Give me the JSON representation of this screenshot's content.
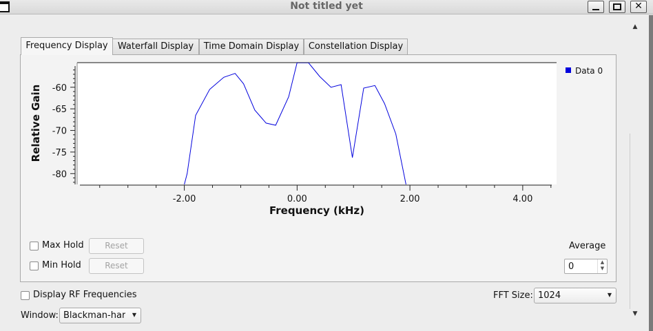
{
  "window": {
    "title": "Not titled yet"
  },
  "tabs": [
    {
      "label": "Frequency Display",
      "active": true
    },
    {
      "label": "Waterfall Display",
      "active": false
    },
    {
      "label": "Time Domain Display",
      "active": false
    },
    {
      "label": "Constellation Display",
      "active": false
    }
  ],
  "chart_data": {
    "type": "line",
    "xlabel": "Frequency (kHz)",
    "ylabel": "Relative Gain",
    "xlim": [
      -3.9,
      4.6
    ],
    "ylim": [
      -82.5,
      -54.3
    ],
    "x_ticks": [
      "-2.00",
      "0.00",
      "2.00",
      "4.00"
    ],
    "y_ticks": [
      "-60",
      "-65",
      "-70",
      "-75",
      "-80"
    ],
    "legend_position": "top-right",
    "grid": false,
    "series": [
      {
        "name": "Data 0",
        "color": "#0000dd",
        "x": [
          -2.0,
          -1.95,
          -1.8,
          -1.55,
          -1.3,
          -1.1,
          -0.95,
          -0.75,
          -0.55,
          -0.38,
          -0.15,
          0.0,
          0.2,
          0.4,
          0.6,
          0.78,
          0.98,
          1.18,
          1.38,
          1.55,
          1.75,
          1.93
        ],
        "y": [
          -82.5,
          -80,
          -66.5,
          -60.5,
          -57.7,
          -56.8,
          -59.2,
          -65.3,
          -68.3,
          -68.8,
          -62.2,
          -54.3,
          -54.3,
          -57.5,
          -60,
          -59.4,
          -76.3,
          -60.2,
          -59.6,
          -63.8,
          -70.8,
          -82.5
        ]
      }
    ]
  },
  "controls": {
    "max_hold_label": "Max Hold",
    "min_hold_label": "Min Hold",
    "reset_label": "Reset",
    "average_label": "Average",
    "average_value": "0",
    "display_rf_label": "Display RF Frequencies",
    "fft_size_label": "FFT Size:",
    "fft_size_value": "1024",
    "window_label": "Window:",
    "window_value": "Blackman-harris"
  }
}
